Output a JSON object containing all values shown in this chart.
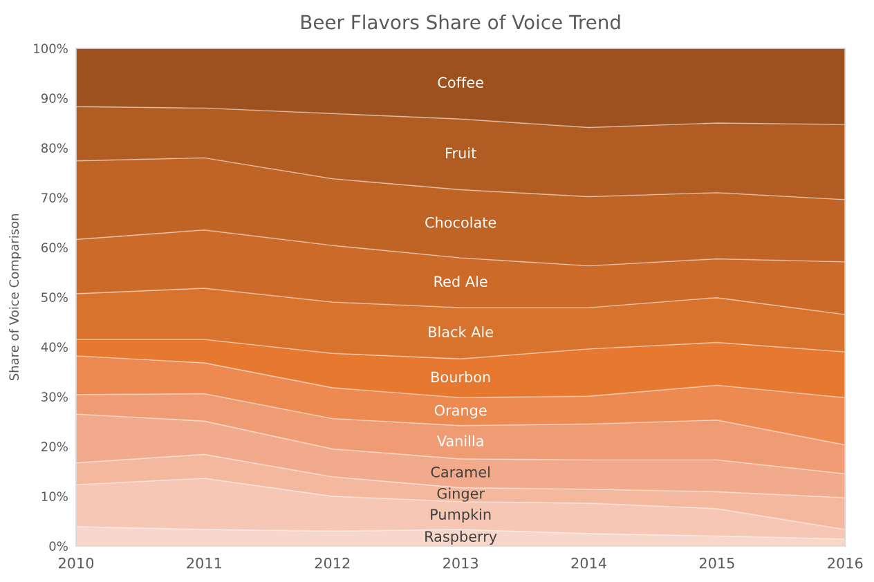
{
  "chart_data": {
    "type": "area",
    "stacked": true,
    "title": "Beer Flavors Share of Voice Trend",
    "ylabel": "Share of Voice Comparison",
    "x": [
      2010,
      2011,
      2012,
      2013,
      2014,
      2015,
      2016
    ],
    "xlim": [
      2010,
      2016
    ],
    "xticks": [
      2010,
      2011,
      2012,
      2013,
      2014,
      2015,
      2016
    ],
    "ylim": [
      0,
      100
    ],
    "yticks": [
      {
        "value": 0,
        "label": "0%"
      },
      {
        "value": 10,
        "label": "10%"
      },
      {
        "value": 20,
        "label": "20%"
      },
      {
        "value": 30,
        "label": "30%"
      },
      {
        "value": 40,
        "label": "40%"
      },
      {
        "value": 50,
        "label": "50%"
      },
      {
        "value": 60,
        "label": "60%"
      },
      {
        "value": 70,
        "label": "70%"
      },
      {
        "value": 80,
        "label": "80%"
      },
      {
        "value": 90,
        "label": "90%"
      },
      {
        "value": 100,
        "label": "100%"
      }
    ],
    "grid": false,
    "legend": false,
    "series": [
      {
        "name": "Raspberry",
        "color": "#f7d7cb",
        "values": [
          3.9,
          3.3,
          3.0,
          3.3,
          2.5,
          2.0,
          1.4
        ]
      },
      {
        "name": "Pumpkin",
        "color": "#f5c7b4",
        "values": [
          8.4,
          10.3,
          7.0,
          5.6,
          6.1,
          5.5,
          1.9
        ]
      },
      {
        "name": "Ginger",
        "color": "#f3b89e",
        "values": [
          4.4,
          4.8,
          3.9,
          2.8,
          2.8,
          3.4,
          6.4
        ]
      },
      {
        "name": "Caramel",
        "color": "#f1ab8c",
        "values": [
          9.8,
          6.7,
          5.6,
          5.8,
          5.9,
          6.4,
          4.8
        ]
      },
      {
        "name": "Vanilla",
        "color": "#ef9c74",
        "values": [
          3.9,
          5.5,
          6.1,
          6.7,
          7.2,
          8.0,
          5.8
        ]
      },
      {
        "name": "Orange",
        "color": "#ec8a52",
        "values": [
          7.8,
          6.2,
          6.2,
          5.6,
          5.6,
          7.0,
          9.5
        ]
      },
      {
        "name": "Bourbon",
        "color": "#e6782f",
        "values": [
          3.3,
          4.7,
          6.9,
          7.8,
          9.5,
          8.6,
          9.2
        ]
      },
      {
        "name": "Black Ale",
        "color": "#d8732e",
        "values": [
          9.2,
          10.3,
          10.3,
          10.3,
          8.3,
          9.0,
          7.5
        ]
      },
      {
        "name": "Red Ale",
        "color": "#cc6a2a",
        "values": [
          10.9,
          11.7,
          11.4,
          10.0,
          8.4,
          7.8,
          10.6
        ]
      },
      {
        "name": "Chocolate",
        "color": "#c06426",
        "values": [
          15.8,
          14.5,
          13.4,
          13.7,
          13.9,
          13.3,
          12.5
        ]
      },
      {
        "name": "Fruit",
        "color": "#b05c22",
        "values": [
          10.9,
          10.0,
          13.1,
          14.2,
          13.9,
          14.0,
          15.1
        ]
      },
      {
        "name": "Coffee",
        "color": "#9c511e",
        "values": [
          11.7,
          12.0,
          13.1,
          14.2,
          15.9,
          15.0,
          15.3
        ]
      }
    ]
  }
}
